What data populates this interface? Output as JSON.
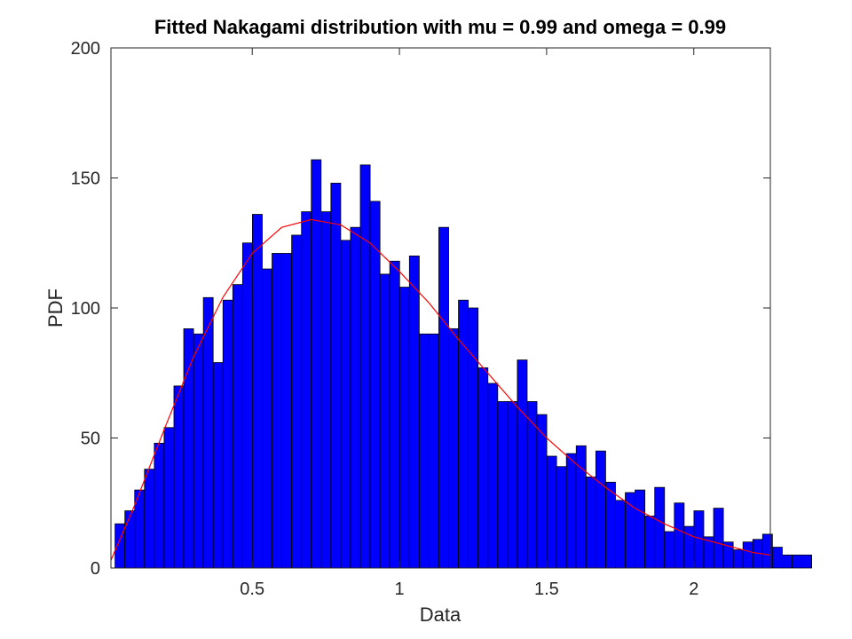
{
  "chart_data": {
    "type": "bar",
    "title": "Fitted Nakagami distribution with mu = 0.99 and omega = 0.99",
    "xlabel": "Data",
    "ylabel": "PDF",
    "xlim": [
      0.02,
      2.26
    ],
    "ylim": [
      0,
      200
    ],
    "xticks": [
      0.5,
      1,
      1.5,
      2
    ],
    "xtick_labels": [
      "0.5",
      "1",
      "1.5",
      "2"
    ],
    "yticks": [
      0,
      50,
      100,
      150,
      200
    ],
    "ytick_labels": [
      "0",
      "50",
      "100",
      "150",
      "200"
    ],
    "grid": false,
    "histogram": {
      "bin_start": 0.034,
      "bin_width": 0.03333,
      "values": [
        17,
        22,
        30,
        38,
        48,
        54,
        70,
        92,
        90,
        104,
        79,
        103,
        109,
        125,
        136,
        115,
        121,
        121,
        128,
        137,
        157,
        137,
        148,
        126,
        131,
        155,
        141,
        113,
        118,
        108,
        120,
        90,
        90,
        131,
        92,
        103,
        100,
        77,
        71,
        64,
        64,
        80,
        64,
        59,
        43,
        39,
        44,
        47,
        35,
        45,
        33,
        26,
        29,
        30,
        20,
        31,
        14,
        25,
        16,
        22,
        12,
        23,
        10,
        7,
        10,
        11,
        13,
        8,
        5,
        5,
        5
      ],
      "color": "#0000ff",
      "edge_color": "#000000"
    },
    "series": [
      {
        "type": "line",
        "color": "#ff0000",
        "x": [
          0.02,
          0.1,
          0.2,
          0.3,
          0.4,
          0.5,
          0.6,
          0.7,
          0.8,
          0.9,
          1.0,
          1.1,
          1.2,
          1.3,
          1.4,
          1.5,
          1.6,
          1.7,
          1.8,
          1.9,
          2.0,
          2.1,
          2.2,
          2.26
        ],
        "y": [
          3,
          24,
          53,
          81,
          104,
          121,
          131,
          134,
          132,
          125,
          114,
          102,
          88,
          75,
          62,
          50,
          40,
          31,
          23,
          17,
          12,
          9,
          6,
          5
        ]
      }
    ]
  }
}
